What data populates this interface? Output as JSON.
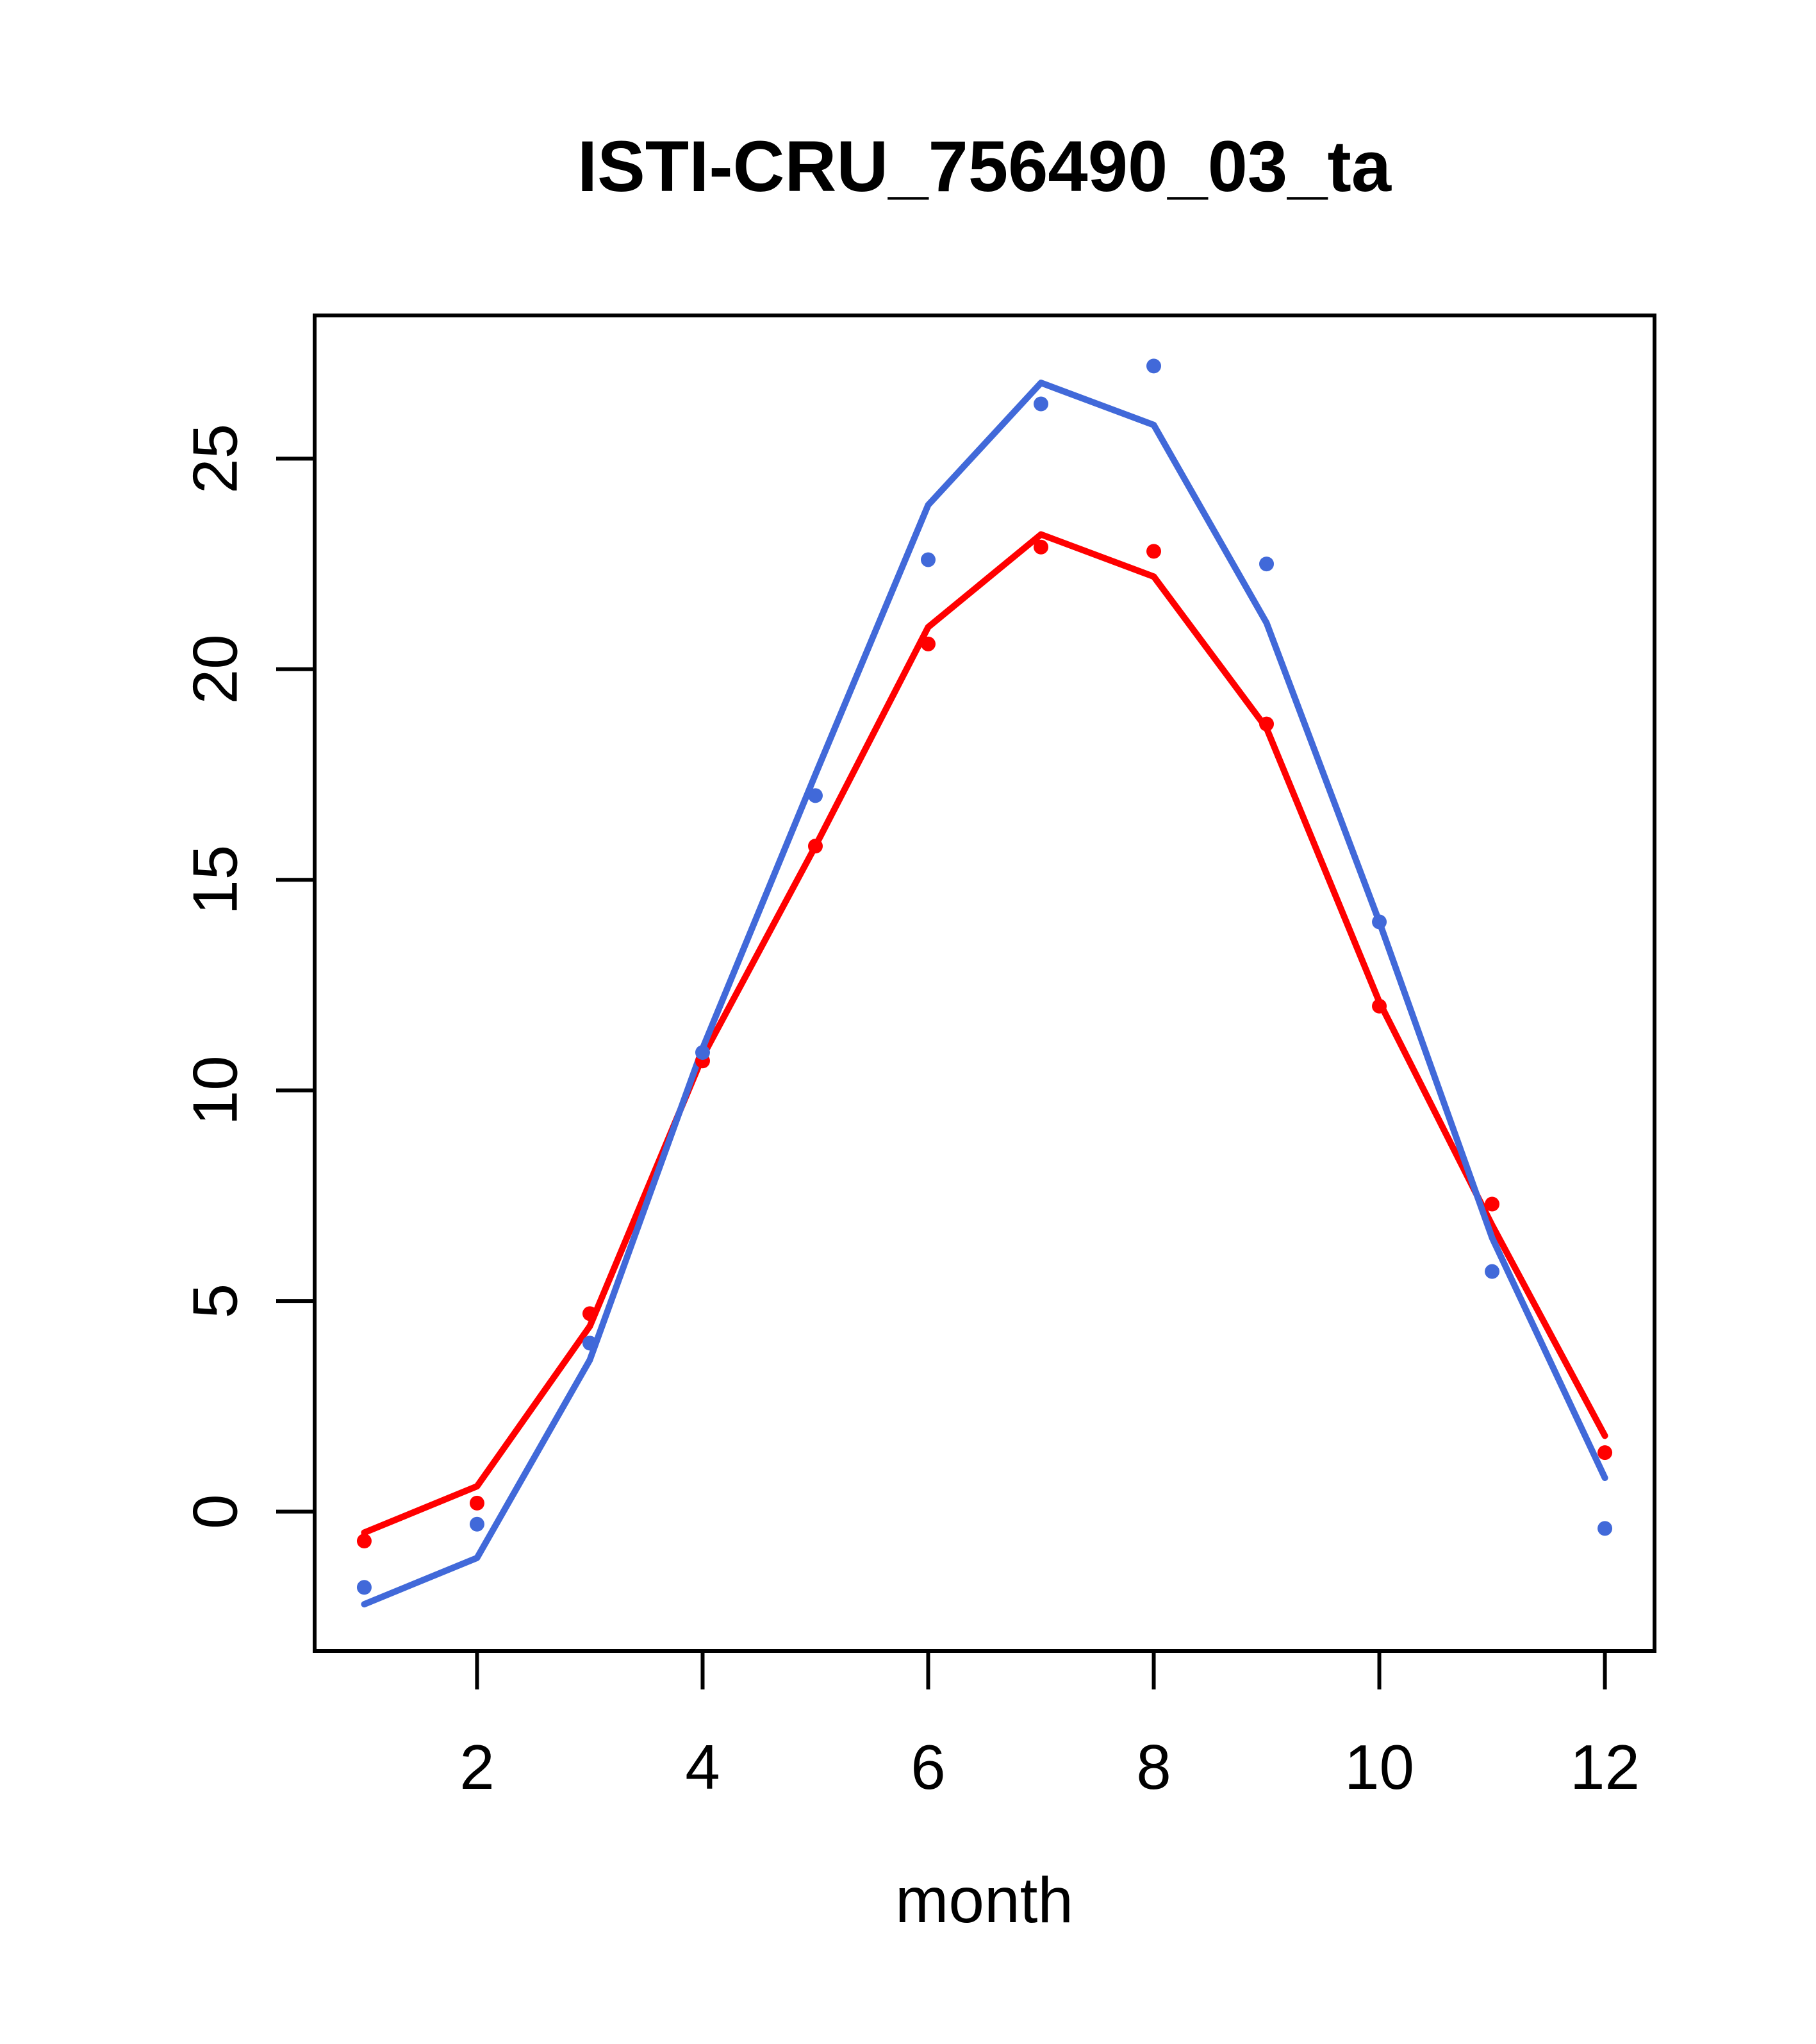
{
  "title": "ISTI-CRU_756490_03_ta",
  "chart_data": {
    "type": "line",
    "title": "ISTI-CRU_756490_03_ta",
    "xlabel": "month",
    "ylabel": "",
    "x": [
      1,
      2,
      3,
      4,
      5,
      6,
      7,
      8,
      9,
      10,
      11,
      12
    ],
    "xticks": [
      2,
      4,
      6,
      8,
      10,
      12
    ],
    "yticks": [
      0,
      5,
      10,
      15,
      20,
      25
    ],
    "xlim": [
      0.56,
      12.44
    ],
    "ylim": [
      -3.31,
      28.4
    ],
    "grid": false,
    "legend_position": "none",
    "series": [
      {
        "name": "red-line",
        "draw": "line",
        "color": "#FF0000",
        "values": [
          -0.5,
          0.6,
          4.4,
          10.8,
          15.8,
          21.0,
          23.2,
          22.2,
          18.6,
          12.1,
          6.8,
          1.8
        ]
      },
      {
        "name": "blue-line",
        "draw": "line",
        "color": "#4169D9",
        "values": [
          -2.2,
          -1.1,
          3.6,
          11.0,
          17.5,
          23.9,
          26.8,
          25.8,
          21.1,
          14.0,
          6.5,
          0.8
        ]
      },
      {
        "name": "red-points",
        "draw": "points",
        "color": "#FF0000",
        "values": [
          -0.7,
          0.2,
          4.7,
          10.7,
          15.8,
          20.6,
          22.9,
          22.8,
          18.7,
          12.0,
          7.3,
          1.4
        ]
      },
      {
        "name": "blue-points",
        "draw": "points",
        "color": "#4169D9",
        "values": [
          -1.8,
          -0.3,
          4.0,
          10.9,
          17.0,
          22.6,
          26.3,
          27.2,
          22.5,
          14.0,
          5.7,
          -0.4
        ]
      }
    ]
  },
  "colors": {
    "red_series": "#FF0000",
    "blue_series": "#4169D9",
    "axis": "#000000",
    "background": "#FFFFFF"
  }
}
